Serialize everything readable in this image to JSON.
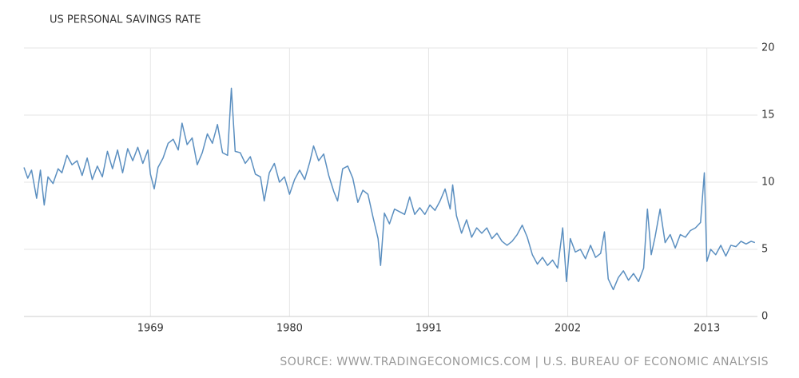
{
  "chart_data": {
    "type": "line",
    "title": "US PERSONAL SAVINGS RATE",
    "source": "SOURCE: WWW.TRADINGECONOMICS.COM | U.S. BUREAU OF ECONOMIC ANALYSIS",
    "x": [
      1959.0,
      1959.3,
      1959.6,
      1960.0,
      1960.3,
      1960.6,
      1960.9,
      1961.3,
      1961.7,
      1962.0,
      1962.4,
      1962.8,
      1963.2,
      1963.6,
      1964.0,
      1964.4,
      1964.8,
      1965.2,
      1965.6,
      1966.0,
      1966.4,
      1966.8,
      1967.2,
      1967.6,
      1968.0,
      1968.4,
      1968.8,
      1969.0,
      1969.3,
      1969.6,
      1970.0,
      1970.4,
      1970.8,
      1971.2,
      1971.5,
      1971.9,
      1972.3,
      1972.7,
      1973.1,
      1973.5,
      1973.9,
      1974.3,
      1974.7,
      1975.1,
      1975.4,
      1975.7,
      1976.1,
      1976.5,
      1976.9,
      1977.3,
      1977.7,
      1978.0,
      1978.4,
      1978.8,
      1979.2,
      1979.6,
      1980.0,
      1980.4,
      1980.8,
      1981.2,
      1981.6,
      1981.9,
      1982.3,
      1982.7,
      1983.1,
      1983.5,
      1983.8,
      1984.2,
      1984.6,
      1985.0,
      1985.4,
      1985.8,
      1986.2,
      1986.6,
      1987.0,
      1987.2,
      1987.5,
      1987.9,
      1988.3,
      1988.7,
      1989.1,
      1989.5,
      1989.9,
      1990.3,
      1990.7,
      1991.1,
      1991.5,
      1991.9,
      1992.3,
      1992.7,
      1992.9,
      1993.2,
      1993.6,
      1994.0,
      1994.4,
      1994.8,
      1995.2,
      1995.6,
      1996.0,
      1996.4,
      1996.8,
      1997.2,
      1997.6,
      1998.0,
      1998.4,
      1998.8,
      1999.2,
      1999.6,
      2000.0,
      2000.4,
      2000.8,
      2001.2,
      2001.6,
      2001.9,
      2002.2,
      2002.6,
      2003.0,
      2003.4,
      2003.8,
      2004.2,
      2004.6,
      2004.9,
      2005.2,
      2005.6,
      2006.0,
      2006.4,
      2006.8,
      2007.2,
      2007.6,
      2008.0,
      2008.3,
      2008.6,
      2008.9,
      2009.3,
      2009.7,
      2010.1,
      2010.5,
      2010.9,
      2011.3,
      2011.7,
      2012.1,
      2012.5,
      2012.8,
      2013.0,
      2013.3,
      2013.7,
      2014.1,
      2014.5,
      2014.9,
      2015.3,
      2015.7,
      2016.1,
      2016.5,
      2016.8
    ],
    "series": [
      {
        "name": "Personal Savings Rate",
        "color": "#5b8fc0",
        "values": [
          11.1,
          10.3,
          10.9,
          8.8,
          10.9,
          8.3,
          10.4,
          9.9,
          11.0,
          10.7,
          12.0,
          11.3,
          11.6,
          10.5,
          11.8,
          10.2,
          11.2,
          10.4,
          12.3,
          11.0,
          12.4,
          10.7,
          12.5,
          11.6,
          12.6,
          11.4,
          12.4,
          10.6,
          9.5,
          11.1,
          11.8,
          12.9,
          13.2,
          12.4,
          14.4,
          12.8,
          13.3,
          11.3,
          12.2,
          13.6,
          12.9,
          14.3,
          12.2,
          12.0,
          17.0,
          12.3,
          12.2,
          11.4,
          11.9,
          10.6,
          10.4,
          8.6,
          10.7,
          11.4,
          10.0,
          10.4,
          9.1,
          10.2,
          10.9,
          10.2,
          11.5,
          12.7,
          11.6,
          12.1,
          10.5,
          9.3,
          8.6,
          11.0,
          11.2,
          10.3,
          8.5,
          9.4,
          9.1,
          7.4,
          5.8,
          3.8,
          7.7,
          6.9,
          8.0,
          7.8,
          7.6,
          8.9,
          7.6,
          8.1,
          7.6,
          8.3,
          7.9,
          8.6,
          9.5,
          8.0,
          9.8,
          7.5,
          6.2,
          7.2,
          5.9,
          6.6,
          6.2,
          6.6,
          5.8,
          6.2,
          5.6,
          5.3,
          5.6,
          6.1,
          6.8,
          5.9,
          4.6,
          3.9,
          4.4,
          3.8,
          4.2,
          3.6,
          6.6,
          2.6,
          5.8,
          4.8,
          5.0,
          4.3,
          5.3,
          4.4,
          4.7,
          6.3,
          2.8,
          2.0,
          2.9,
          3.4,
          2.7,
          3.2,
          2.6,
          3.6,
          8.0,
          4.6,
          5.9,
          8.0,
          5.5,
          6.1,
          5.1,
          6.1,
          5.9,
          6.4,
          6.6,
          7.0,
          10.7,
          4.1,
          5.0,
          4.6,
          5.3,
          4.5,
          5.3,
          5.2,
          5.6,
          5.4,
          5.6,
          5.5
        ]
      }
    ],
    "xlim": [
      1959,
      2017
    ],
    "xticks": [
      1969,
      1980,
      1991,
      2002,
      2013
    ],
    "ylim": [
      0,
      20
    ],
    "yticks": [
      0,
      5,
      10,
      15,
      20
    ],
    "grid": true
  }
}
